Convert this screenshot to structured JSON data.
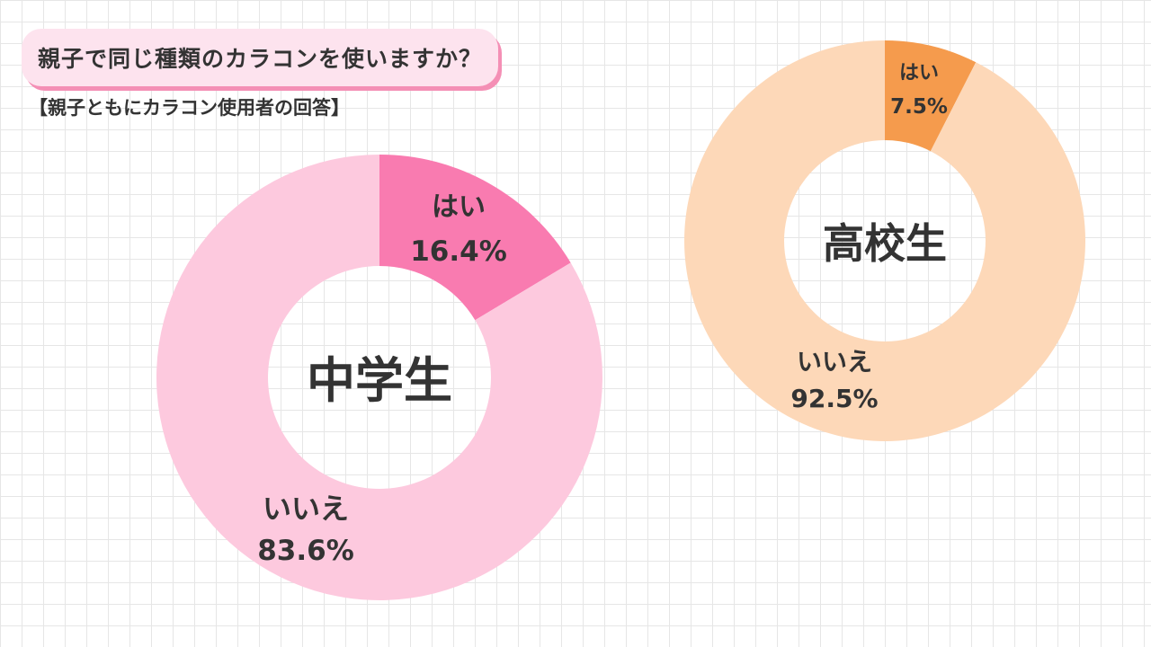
{
  "header": {
    "title": "親子で同じ種類のカラコンを使いますか？",
    "subtitle": "【親子ともにカラコン使用者の回答】"
  },
  "colors": {
    "middle_yes": "#f97bb0",
    "middle_no": "#fdc9de",
    "high_yes": "#f59b4d",
    "high_no": "#fdd8b8",
    "title_pill": "#fde3ee",
    "title_shadow": "#f48fb5"
  },
  "chart_data": [
    {
      "type": "pie",
      "center_label": "中学生",
      "slices": [
        {
          "label": "はい",
          "value": 16.4,
          "display": "16.4%"
        },
        {
          "label": "いいえ",
          "value": 83.6,
          "display": "83.6%"
        }
      ]
    },
    {
      "type": "pie",
      "center_label": "高校生",
      "slices": [
        {
          "label": "はい",
          "value": 7.5,
          "display": "7.5%"
        },
        {
          "label": "いいえ",
          "value": 92.5,
          "display": "92.5%"
        }
      ]
    }
  ]
}
